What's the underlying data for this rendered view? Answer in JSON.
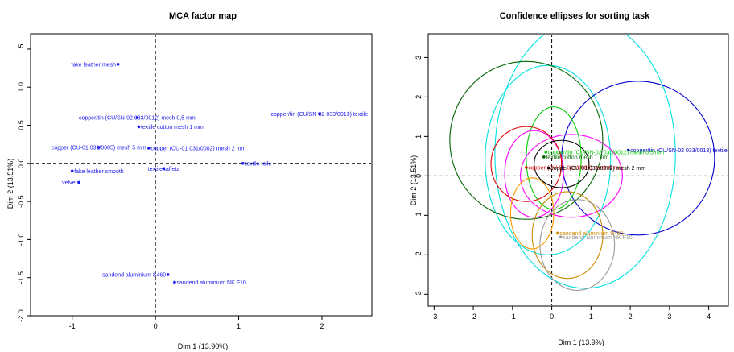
{
  "chart_data": [
    {
      "type": "scatter",
      "title": "MCA factor map",
      "xlabel": "Dim 1 (13.90%)",
      "ylabel": "Dim 2 (13.51%)",
      "xlim": [
        -1.5,
        2.6
      ],
      "ylim": [
        -2.0,
        1.7
      ],
      "xticks": [
        -1,
        0,
        1,
        2
      ],
      "yticks": [
        -2.0,
        -1.5,
        -1.0,
        -0.5,
        0.0,
        0.5,
        1.0,
        1.5
      ],
      "ytick_labels": [
        "-2.0",
        "-1.5",
        "-1.0",
        "-0.5",
        "0.0",
        "0.5",
        "1.0",
        "1.5"
      ],
      "grid": false,
      "reference_lines": {
        "x": 0,
        "y": 0
      },
      "point_color": "#1a1aee",
      "points": [
        {
          "label": "fake leather mesh",
          "x": -0.45,
          "y": 1.3,
          "anchor": "end"
        },
        {
          "label": "copper/tin (CU/SN-02 033/0012) mesh 0,5 mm",
          "x": -0.22,
          "y": 0.6,
          "anchor": "middle"
        },
        {
          "label": "textile cotton mesh    1 mm",
          "x": -0.2,
          "y": 0.48,
          "anchor": "start"
        },
        {
          "label": "copper/tin (CU/SN-02 033/0013) textile",
          "x": 1.97,
          "y": 0.65,
          "anchor": "middle"
        },
        {
          "label": "copper (CU-01 031/0002) mesh 2 mm",
          "x": -0.08,
          "y": 0.2,
          "anchor": "start"
        },
        {
          "label": "copper (CU-01 031/0005) mesh 5 mm",
          "x": -0.68,
          "y": 0.21,
          "anchor": "middle"
        },
        {
          "label": "fake leather smooth",
          "x": -1.0,
          "y": -0.1,
          "anchor": "start"
        },
        {
          "label": "textile taffeta",
          "x": 0.1,
          "y": -0.07,
          "anchor": "middle"
        },
        {
          "label": "textile toile",
          "x": 1.05,
          "y": 0.0,
          "anchor": "start"
        },
        {
          "label": "velvet",
          "x": -0.92,
          "y": -0.25,
          "anchor": "end"
        },
        {
          "label": "sandend aluminium S460",
          "x": 0.15,
          "y": -1.46,
          "anchor": "end"
        },
        {
          "label": "sandend aluminium NK F10",
          "x": 0.23,
          "y": -1.56,
          "anchor": "start"
        }
      ]
    },
    {
      "type": "scatter",
      "title": "Confidence ellipses for sorting task",
      "xlabel": "Dim 1 (13.9%)",
      "ylabel": "Dim 2 (13.51%)",
      "xlim": [
        -3.15,
        4.5
      ],
      "ylim": [
        -3.3,
        3.6
      ],
      "xticks": [
        -3,
        -2,
        -1,
        0,
        1,
        2,
        3,
        4
      ],
      "yticks": [
        -3,
        -2,
        -1,
        0,
        1,
        2,
        3
      ],
      "grid": false,
      "reference_lines": {
        "x": 0,
        "y": 0
      },
      "ellipses": [
        {
          "cx": 0.85,
          "cy": 0.55,
          "rx": 2.3,
          "ry": 3.4,
          "color": "#00e0e0"
        },
        {
          "cx": -0.1,
          "cy": 0.4,
          "rx": 1.6,
          "ry": 2.4,
          "color": "#00e0e0"
        },
        {
          "cx": 2.2,
          "cy": 0.45,
          "rx": 1.95,
          "ry": 1.95,
          "color": "#0000cc"
        },
        {
          "cx": -0.65,
          "cy": 0.9,
          "rx": 1.95,
          "ry": 2.0,
          "color": "#006400"
        },
        {
          "cx": 0.05,
          "cy": 0.45,
          "rx": 0.7,
          "ry": 1.3,
          "color": "#00cc00"
        },
        {
          "cx": -0.45,
          "cy": 0.05,
          "rx": 0.75,
          "ry": 1.1,
          "color": "#ff00ff"
        },
        {
          "cx": 0.5,
          "cy": 0.0,
          "rx": 1.3,
          "ry": 1.05,
          "color": "#ff00ff"
        },
        {
          "cx": -0.65,
          "cy": 0.3,
          "rx": 0.9,
          "ry": 0.95,
          "color": "#dd0000"
        },
        {
          "cx": -0.5,
          "cy": -0.95,
          "rx": 0.55,
          "ry": 0.9,
          "color": "#ff9900"
        },
        {
          "cx": 0.25,
          "cy": 0.3,
          "rx": 0.7,
          "ry": 0.6,
          "color": "#000000"
        },
        {
          "cx": 0.4,
          "cy": -1.5,
          "rx": 0.9,
          "ry": 1.1,
          "color": "#cc8800"
        },
        {
          "cx": 0.65,
          "cy": -1.75,
          "rx": 0.95,
          "ry": 1.15,
          "color": "#999999"
        }
      ],
      "points": [
        {
          "label": "copper/tin (CU/SN-02 033/0013) textile",
          "x": 1.95,
          "y": 0.65,
          "color": "#0000cc",
          "anchor": "start"
        },
        {
          "label": "copper/tin (CU/SN-02 033/0012) mesh 0,5 mm",
          "x": -0.15,
          "y": 0.6,
          "color": "#00cc00",
          "anchor": "start"
        },
        {
          "label": "textile cotton mesh   1 mm",
          "x": -0.2,
          "y": 0.48,
          "color": "#006400",
          "anchor": "start"
        },
        {
          "label": "copper (CU-01 031/0005) mesh 5 mm",
          "x": -0.65,
          "y": 0.21,
          "color": "#dd0000",
          "anchor": "start"
        },
        {
          "label": "copper (CU-01 031/0002) mesh 2 mm",
          "x": -0.08,
          "y": 0.2,
          "color": "#000000",
          "anchor": "start"
        },
        {
          "label": "sandend aluminium S460",
          "x": 0.15,
          "y": -1.45,
          "color": "#cc8800",
          "anchor": "start"
        },
        {
          "label": "sandend aluminium NK F10",
          "x": 0.23,
          "y": -1.55,
          "color": "#999999",
          "anchor": "start"
        }
      ]
    }
  ]
}
